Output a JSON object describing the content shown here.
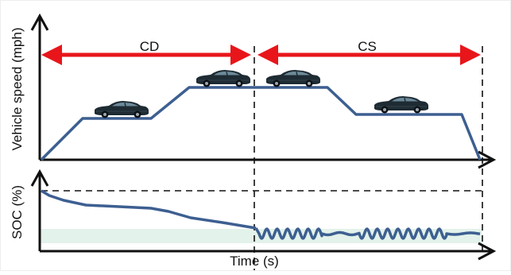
{
  "labels": {
    "cd": "CD",
    "cs": "CS",
    "y_top": "Vehicle speed (mph)",
    "y_bottom": "SOC (%)",
    "x": "Time (s)"
  },
  "colors": {
    "trace": "#3d5f91",
    "arrow": "#e8161b",
    "band": "#e3f2ea",
    "axis": "#111111"
  },
  "icons": {
    "vehicle": "car-icon"
  }
}
